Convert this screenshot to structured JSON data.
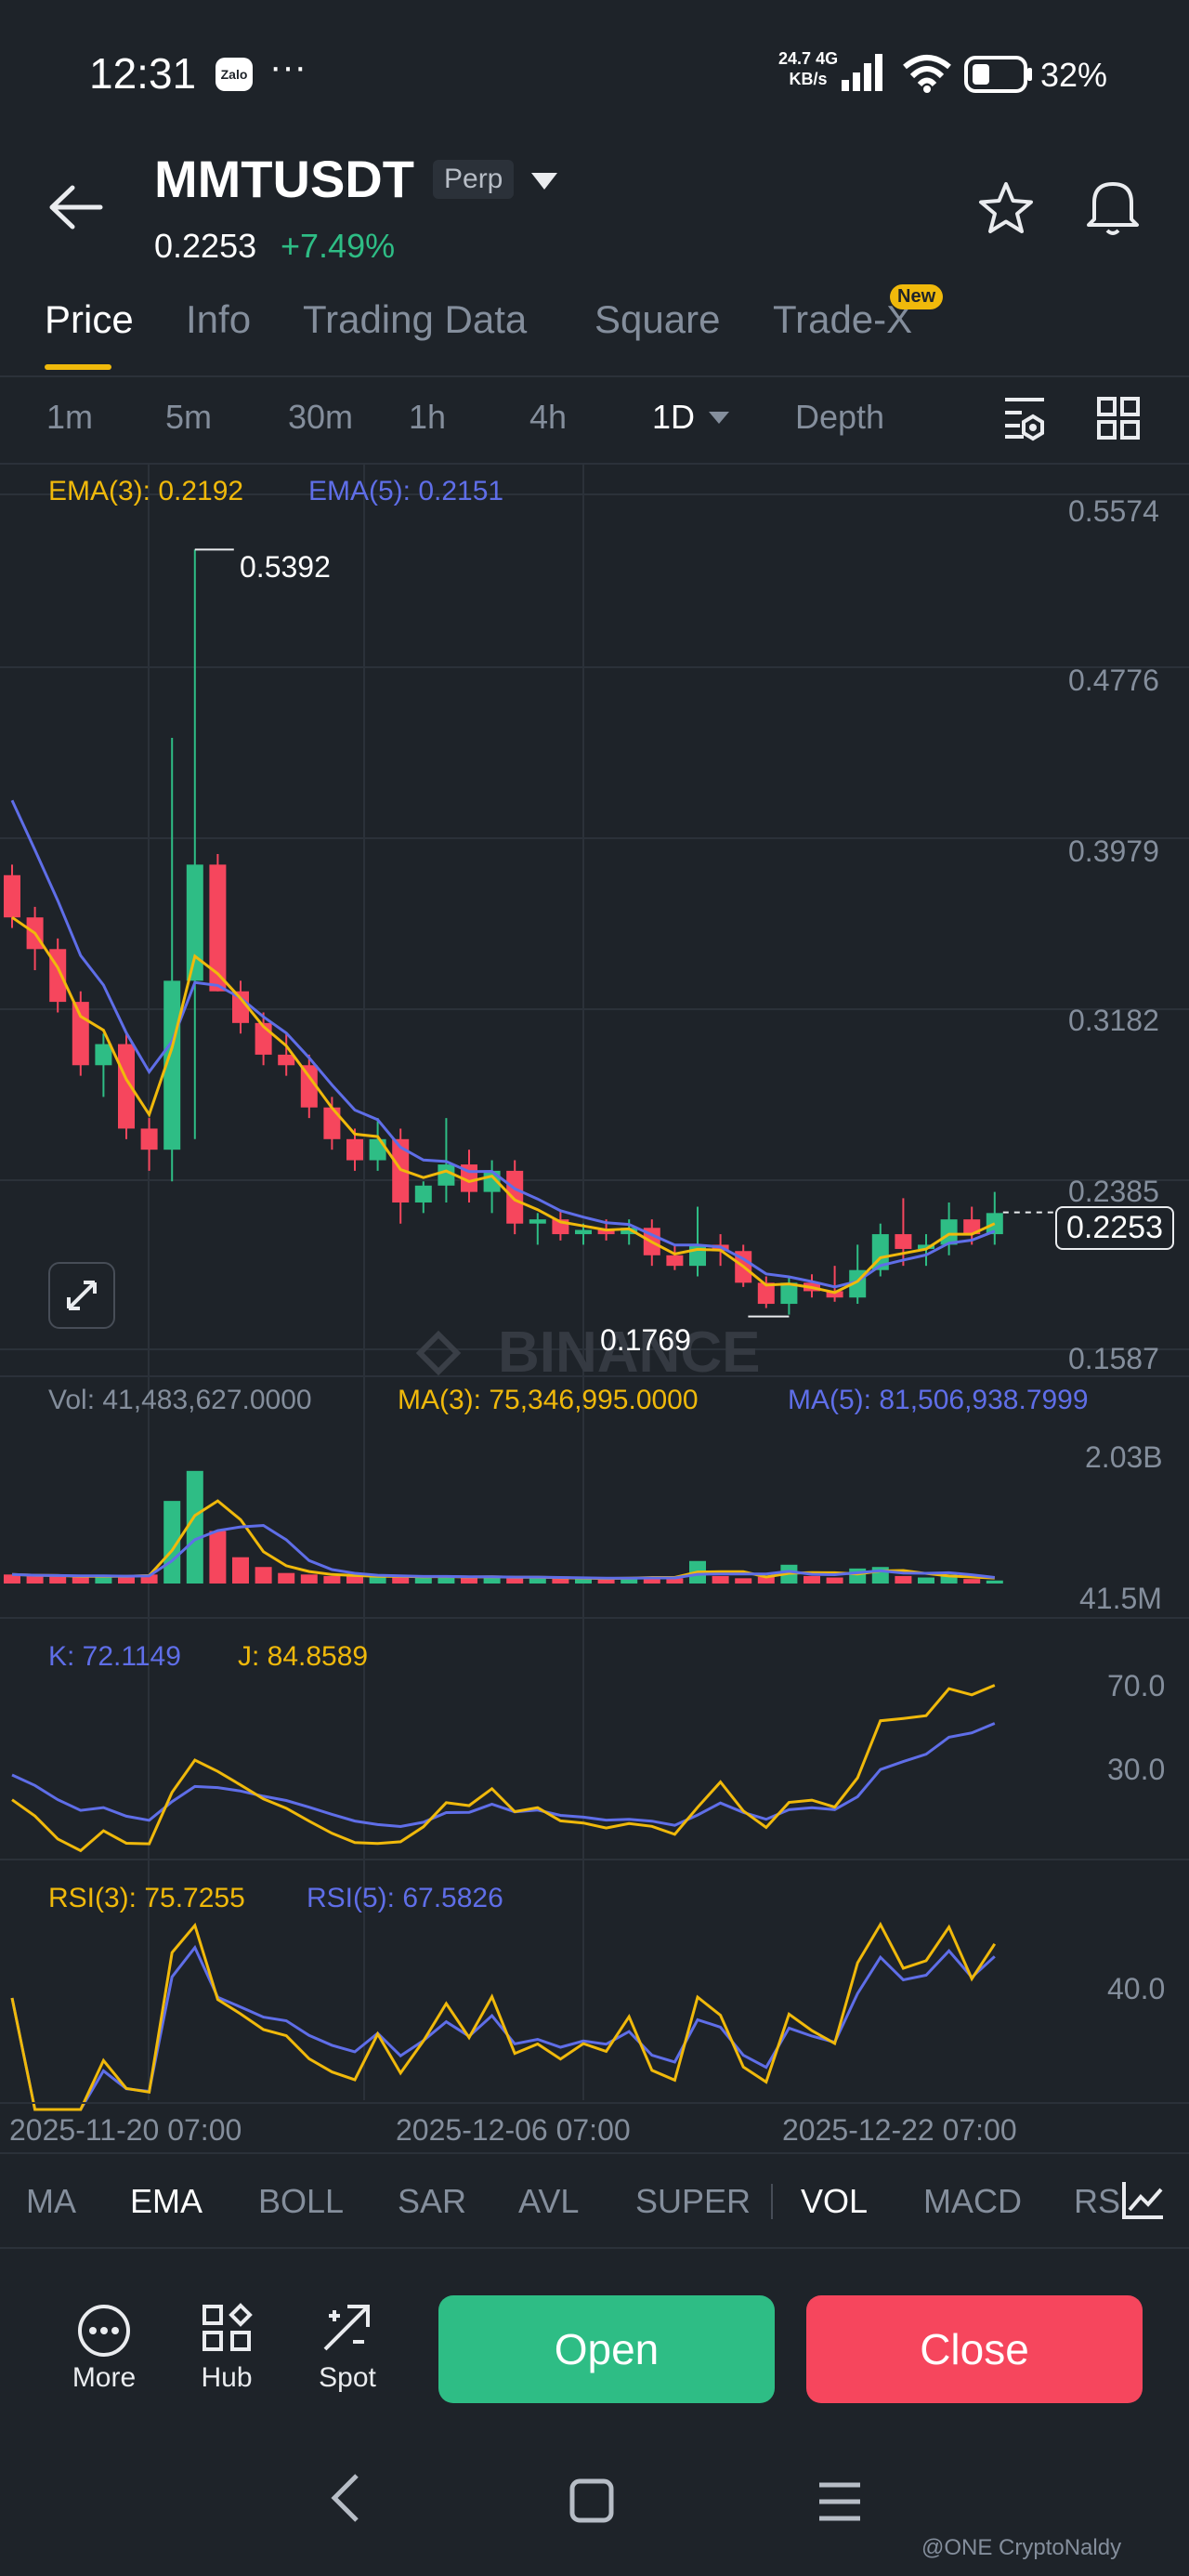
{
  "status_bar": {
    "time": "12:31",
    "app_badge": "Zalo",
    "more": "···",
    "net_speed": "24.7",
    "net_unit": "KB/s",
    "net_type": "4G",
    "battery": "32%"
  },
  "header": {
    "symbol": "MMTUSDT",
    "contract_type": "Perp",
    "last_price": "0.2253",
    "change": "+7.49%"
  },
  "tabs": [
    {
      "label": "Price",
      "active": true
    },
    {
      "label": "Info",
      "active": false
    },
    {
      "label": "Trading Data",
      "active": false
    },
    {
      "label": "Square",
      "active": false
    },
    {
      "label": "Trade-X",
      "active": false,
      "badge": "New"
    }
  ],
  "timeframes": [
    "1m",
    "5m",
    "30m",
    "1h",
    "4h",
    "1D",
    "Depth"
  ],
  "active_timeframe": "1D",
  "indicators": {
    "ema3": "EMA(3): 0.2192",
    "ema5": "EMA(5): 0.2151",
    "vol": "Vol: 41,483,627.0000",
    "vol_ma3": "MA(3): 75,346,995.0000",
    "vol_ma5": "MA(5): 81,506,938.7999",
    "kdj_k": "K: 72.1149",
    "kdj_j": "J: 84.8589",
    "rsi3": "RSI(3): 75.7255",
    "rsi5": "RSI(5): 67.5826"
  },
  "watermark": "BINANCE",
  "chart_data": {
    "type": "candlestick",
    "price_axis_labels": [
      "0.5574",
      "0.4776",
      "0.3979",
      "0.3182",
      "0.2385",
      "0.1587"
    ],
    "high_marker": "0.5392",
    "low_marker": "0.1769",
    "current_price_label": "0.2253",
    "vol_axis_labels": [
      "2.03B",
      "41.5M"
    ],
    "kdj_axis_labels": [
      "70.0",
      "30.0"
    ],
    "rsi_axis_labels": [
      "40.0"
    ],
    "x_labels": [
      "2025-11-20 07:00",
      "2025-12-06 07:00",
      "2025-12-22 07:00"
    ],
    "colors": {
      "up": "#2ebd85",
      "down": "#f6465d",
      "ema3": "#f0b90b",
      "ema5": "#5f6ee8"
    },
    "candles": [
      [
        0.385,
        0.39,
        0.36,
        0.365
      ],
      [
        0.365,
        0.37,
        0.34,
        0.35
      ],
      [
        0.35,
        0.355,
        0.32,
        0.325
      ],
      [
        0.325,
        0.33,
        0.29,
        0.295
      ],
      [
        0.295,
        0.31,
        0.28,
        0.305
      ],
      [
        0.305,
        0.31,
        0.26,
        0.265
      ],
      [
        0.265,
        0.27,
        0.245,
        0.255
      ],
      [
        0.255,
        0.45,
        0.24,
        0.335
      ],
      [
        0.335,
        0.5392,
        0.26,
        0.39
      ],
      [
        0.39,
        0.395,
        0.33,
        0.33
      ],
      [
        0.33,
        0.335,
        0.31,
        0.315
      ],
      [
        0.315,
        0.32,
        0.295,
        0.3
      ],
      [
        0.3,
        0.31,
        0.29,
        0.295
      ],
      [
        0.295,
        0.3,
        0.27,
        0.275
      ],
      [
        0.275,
        0.28,
        0.255,
        0.26
      ],
      [
        0.26,
        0.265,
        0.245,
        0.25
      ],
      [
        0.25,
        0.27,
        0.245,
        0.26
      ],
      [
        0.26,
        0.265,
        0.22,
        0.23
      ],
      [
        0.23,
        0.24,
        0.225,
        0.238
      ],
      [
        0.238,
        0.27,
        0.23,
        0.248
      ],
      [
        0.248,
        0.255,
        0.23,
        0.235
      ],
      [
        0.235,
        0.25,
        0.225,
        0.245
      ],
      [
        0.245,
        0.25,
        0.215,
        0.22
      ],
      [
        0.22,
        0.225,
        0.21,
        0.222
      ],
      [
        0.222,
        0.226,
        0.212,
        0.215
      ],
      [
        0.215,
        0.22,
        0.21,
        0.217
      ],
      [
        0.217,
        0.222,
        0.212,
        0.215
      ],
      [
        0.215,
        0.222,
        0.21,
        0.218
      ],
      [
        0.218,
        0.222,
        0.2,
        0.205
      ],
      [
        0.205,
        0.21,
        0.198,
        0.2
      ],
      [
        0.2,
        0.228,
        0.195,
        0.21
      ],
      [
        0.21,
        0.215,
        0.2,
        0.207
      ],
      [
        0.207,
        0.21,
        0.19,
        0.192
      ],
      [
        0.192,
        0.195,
        0.18,
        0.182
      ],
      [
        0.182,
        0.195,
        0.1769,
        0.192
      ],
      [
        0.192,
        0.196,
        0.185,
        0.188
      ],
      [
        0.188,
        0.2,
        0.183,
        0.185
      ],
      [
        0.185,
        0.21,
        0.182,
        0.198
      ],
      [
        0.198,
        0.22,
        0.195,
        0.215
      ],
      [
        0.215,
        0.232,
        0.2,
        0.208
      ],
      [
        0.208,
        0.215,
        0.2,
        0.21
      ],
      [
        0.21,
        0.23,
        0.205,
        0.222
      ],
      [
        0.222,
        0.228,
        0.21,
        0.215
      ],
      [
        0.215,
        0.235,
        0.21,
        0.225
      ]
    ],
    "volume_billions": [
      0.12,
      0.1,
      0.1,
      0.09,
      0.1,
      0.1,
      0.12,
      1.1,
      1.5,
      0.7,
      0.35,
      0.22,
      0.14,
      0.12,
      0.1,
      0.1,
      0.09,
      0.1,
      0.08,
      0.1,
      0.08,
      0.09,
      0.08,
      0.08,
      0.07,
      0.06,
      0.07,
      0.08,
      0.09,
      0.07,
      0.3,
      0.1,
      0.07,
      0.09,
      0.25,
      0.1,
      0.08,
      0.2,
      0.22,
      0.1,
      0.08,
      0.12,
      0.06,
      0.04
    ]
  },
  "bottom_indicator_tabs": [
    {
      "label": "MA",
      "active": false
    },
    {
      "label": "EMA",
      "active": true
    },
    {
      "label": "BOLL",
      "active": false
    },
    {
      "label": "SAR",
      "active": false
    },
    {
      "label": "AVL",
      "active": false
    },
    {
      "label": "SUPER",
      "active": false
    },
    {
      "label": "VOL",
      "active": true
    },
    {
      "label": "MACD",
      "active": false
    },
    {
      "label": "RS",
      "active": false
    }
  ],
  "toolbar": {
    "more_label": "More",
    "hub_label": "Hub",
    "spot_label": "Spot",
    "open_label": "Open",
    "close_label": "Close"
  },
  "footer_watermark": "@ONE CryptoNaldy"
}
